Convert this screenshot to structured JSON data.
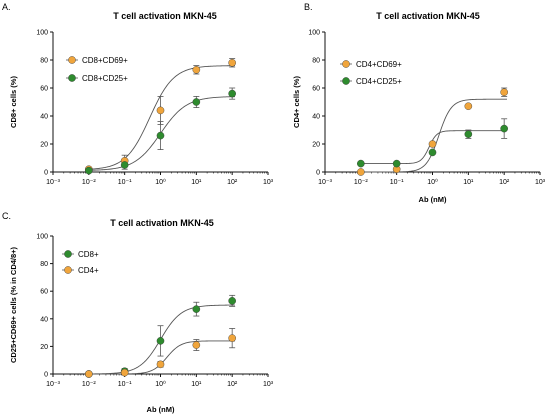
{
  "colors": {
    "orange": "#F0A53C",
    "green": "#2E8B2E",
    "curve": "#555555",
    "errorbar": "#555555",
    "axis": "#111111"
  },
  "chart_data": [
    {
      "panel_letter": "A.",
      "type": "scatter",
      "title": "T cell activation MKN-45",
      "xlabel": "",
      "ylabel": "CD8+ cells (%)",
      "xscale": "log",
      "xlim": [
        0.001,
        1000
      ],
      "ylim": [
        0,
        100
      ],
      "yticks": [
        0,
        20,
        40,
        60,
        80,
        100
      ],
      "legend_position": "top-left",
      "x": [
        0.01,
        0.1,
        1,
        10,
        100
      ],
      "series": [
        {
          "name": "CD8+CD69+",
          "color": "orange",
          "values": [
            2,
            8,
            44,
            73,
            78
          ],
          "errors": [
            1,
            4,
            10,
            3,
            3
          ],
          "fit": {
            "bottom": 1.5,
            "top": 76,
            "ec50": 0.5,
            "hill": 1.3
          }
        },
        {
          "name": "CD8+CD25+",
          "color": "green",
          "values": [
            1,
            5,
            26,
            50,
            56
          ],
          "errors": [
            1,
            3,
            10,
            4,
            4
          ],
          "fit": {
            "bottom": 1.0,
            "top": 54,
            "ec50": 1.0,
            "hill": 1.2
          }
        }
      ]
    },
    {
      "panel_letter": "B.",
      "type": "scatter",
      "title": "T cell activation MKN-45",
      "xlabel": "Ab (nM)",
      "ylabel": "CD4+ cells (%)",
      "xscale": "log",
      "xlim": [
        0.001,
        1000
      ],
      "ylim": [
        0,
        100
      ],
      "yticks": [
        0,
        20,
        40,
        60,
        80,
        100
      ],
      "legend_position": "top-left",
      "x": [
        0.01,
        0.1,
        1,
        10,
        100
      ],
      "series": [
        {
          "name": "CD4+CD69+",
          "color": "orange",
          "values": [
            0,
            2,
            20,
            47,
            57
          ],
          "errors": [
            0.5,
            0.5,
            1,
            1,
            3
          ],
          "fit": {
            "bottom": 0,
            "top": 52,
            "ec50": 1.5,
            "hill": 2.5
          }
        },
        {
          "name": "CD4+CD25+",
          "color": "green",
          "values": [
            6,
            6,
            14,
            27,
            31
          ],
          "errors": [
            0.5,
            0.5,
            1,
            3,
            7
          ],
          "fit": {
            "bottom": 6,
            "top": 29.5,
            "ec50": 0.8,
            "hill": 4
          }
        }
      ]
    },
    {
      "panel_letter": "C.",
      "type": "scatter",
      "title": "T cell activation MKN-45",
      "xlabel": "Ab (nM)",
      "ylabel": "CD25+CD69+ cells (% in CD4/8+)",
      "xscale": "log",
      "xlim": [
        0.001,
        1000
      ],
      "ylim": [
        0,
        100
      ],
      "yticks": [
        0,
        20,
        40,
        60,
        80,
        100
      ],
      "legend_position": "top-left",
      "x": [
        0.01,
        0.1,
        1,
        10,
        100
      ],
      "series": [
        {
          "name": "CD8+",
          "color": "green",
          "values": [
            0,
            2,
            24,
            47,
            53
          ],
          "errors": [
            0.5,
            2,
            11,
            5,
            4
          ],
          "fit": {
            "bottom": 0,
            "top": 50,
            "ec50": 1.0,
            "hill": 1.5
          }
        },
        {
          "name": "CD4+",
          "color": "orange",
          "values": [
            0,
            1,
            7,
            21,
            26
          ],
          "errors": [
            0.5,
            1,
            2,
            4,
            7
          ],
          "fit": {
            "bottom": 0,
            "top": 24,
            "ec50": 1.5,
            "hill": 2.2
          }
        }
      ]
    }
  ]
}
